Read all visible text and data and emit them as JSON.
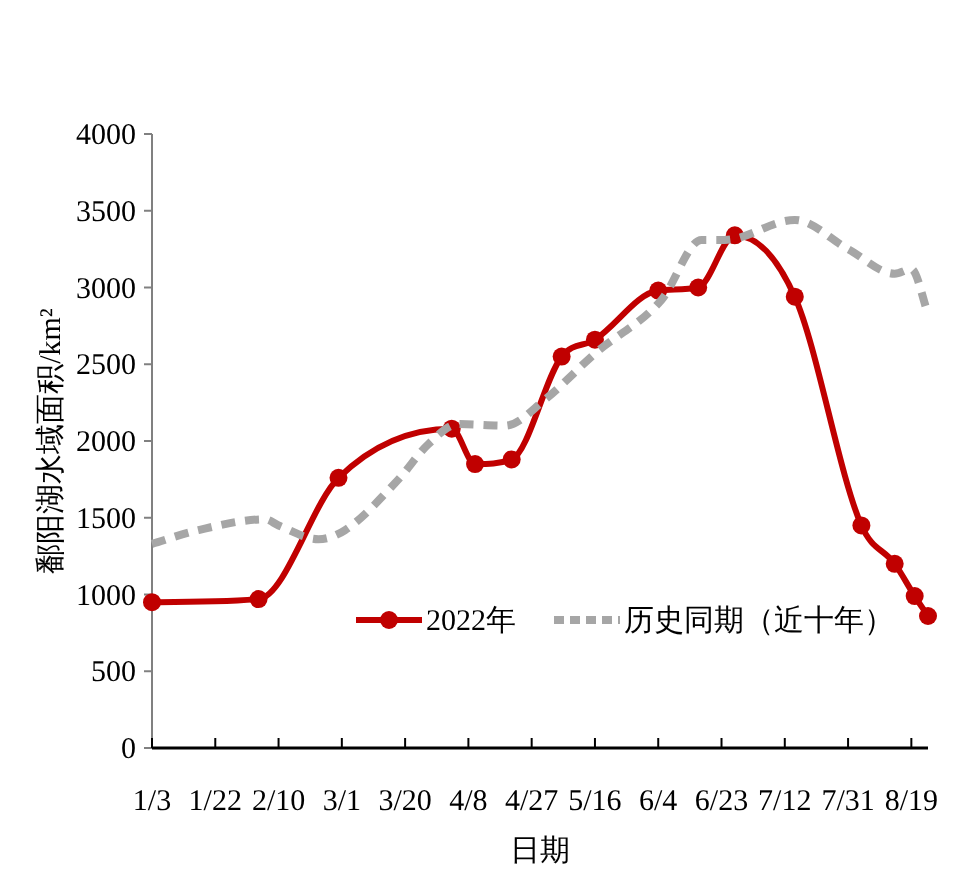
{
  "chart_data": {
    "type": "line",
    "xlabel": "日期",
    "ylabel": "鄱阳湖水域面积/km²",
    "xlim": [
      "--01-03",
      "--08-24"
    ],
    "ylim": [
      0,
      4000
    ],
    "xticks": [
      {
        "value": "--01-03",
        "label": "1/3"
      },
      {
        "value": "--01-22",
        "label": "1/22"
      },
      {
        "value": "--02-10",
        "label": "2/10"
      },
      {
        "value": "--03-01",
        "label": "3/1"
      },
      {
        "value": "--03-20",
        "label": "3/20"
      },
      {
        "value": "--04-08",
        "label": "4/8"
      },
      {
        "value": "--04-27",
        "label": "4/27"
      },
      {
        "value": "--05-16",
        "label": "5/16"
      },
      {
        "value": "--06-04",
        "label": "6/4"
      },
      {
        "value": "--06-23",
        "label": "6/23"
      },
      {
        "value": "--07-12",
        "label": "7/12"
      },
      {
        "value": "--07-31",
        "label": "7/31"
      },
      {
        "value": "--08-19",
        "label": "8/19"
      }
    ],
    "yticks": [
      0,
      500,
      1000,
      1500,
      2000,
      2500,
      3000,
      3500,
      4000
    ],
    "grid": false,
    "legend": "bottom",
    "series": [
      {
        "name": "2022年",
        "color": "#c00000",
        "marker": "circle",
        "line_style": "solid",
        "x": [
          "--01-03",
          "--02-04",
          "--02-28",
          "--04-03",
          "--04-10",
          "--04-21",
          "--05-06",
          "--05-16",
          "--06-04",
          "--06-16",
          "--06-27",
          "--07-15",
          "--08-04",
          "--08-14",
          "--08-20",
          "--08-24"
        ],
        "values": [
          950,
          970,
          1760,
          2080,
          1850,
          1880,
          2550,
          2660,
          2980,
          3000,
          3340,
          2940,
          1450,
          1200,
          990,
          860
        ]
      },
      {
        "name": "历史同期（近十年）",
        "color": "#a6a6a6",
        "marker": "none",
        "line_style": "dashed",
        "x": [
          "--01-03",
          "--01-17",
          "--02-06",
          "--02-10",
          "--02-22",
          "--03-02",
          "--03-18",
          "--03-27",
          "--04-05",
          "--04-19",
          "--05-01",
          "--05-16",
          "--06-05",
          "--06-17",
          "--06-24",
          "--07-15",
          "--07-31",
          "--08-14",
          "--08-19",
          "--08-24"
        ],
        "values": [
          1330,
          1420,
          1490,
          1450,
          1360,
          1420,
          1750,
          1980,
          2110,
          2100,
          2270,
          2570,
          2920,
          3310,
          3310,
          3440,
          3250,
          3090,
          3120,
          2830
        ]
      }
    ]
  }
}
